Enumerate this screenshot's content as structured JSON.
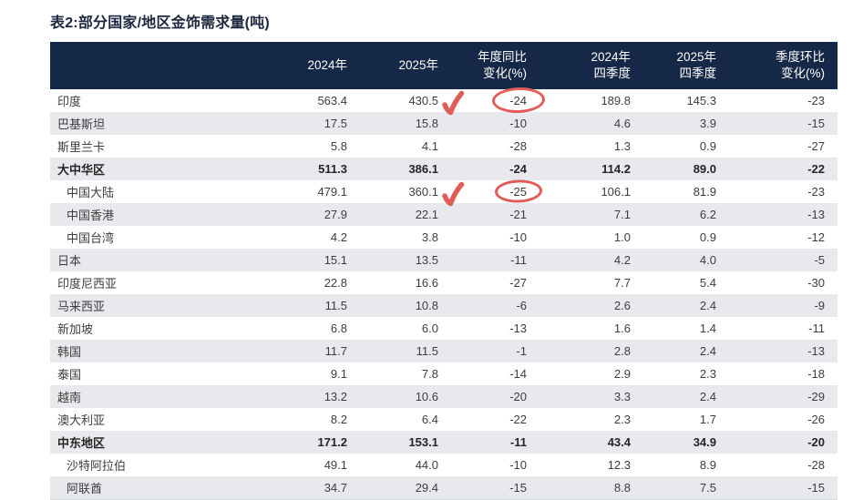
{
  "title": "表2:部分国家/地区金饰需求量(吨)",
  "colors": {
    "header_bg": "#162847",
    "stripe_bg": "#e7e9ec",
    "annotation_red": "#e25c57",
    "body_text": "#3d3d3d"
  },
  "annotations": {
    "checkmark_icon": "red-brush-checkmark",
    "circle_icon": "red-hand-drawn-ellipse"
  },
  "table": {
    "headers": [
      "",
      "2024年",
      "2025年",
      "年度同比\n变化(%)",
      "2024年\n四季度",
      "2025年\n四季度",
      "季度环比\n变化(%)"
    ],
    "rows": [
      {
        "label": "印度",
        "bold": false,
        "indent": false,
        "values": [
          "563.4",
          "430.5",
          "-24",
          "189.8",
          "145.3",
          "-23"
        ],
        "check_col": 1,
        "circle_col": 2,
        "circle_size": "big"
      },
      {
        "label": "巴基斯坦",
        "bold": false,
        "indent": false,
        "values": [
          "17.5",
          "15.8",
          "-10",
          "4.6",
          "3.9",
          "-15"
        ]
      },
      {
        "label": "斯里兰卡",
        "bold": false,
        "indent": false,
        "values": [
          "5.8",
          "4.1",
          "-28",
          "1.3",
          "0.9",
          "-27"
        ]
      },
      {
        "label": "大中华区",
        "bold": true,
        "indent": false,
        "values": [
          "511.3",
          "386.1",
          "-24",
          "114.2",
          "89.0",
          "-22"
        ]
      },
      {
        "label": "中国大陆",
        "bold": false,
        "indent": true,
        "values": [
          "479.1",
          "360.1",
          "-25",
          "106.1",
          "81.9",
          "-23"
        ],
        "check_col": 1,
        "circle_col": 2,
        "circle_size": "small"
      },
      {
        "label": "中国香港",
        "bold": false,
        "indent": true,
        "values": [
          "27.9",
          "22.1",
          "-21",
          "7.1",
          "6.2",
          "-13"
        ]
      },
      {
        "label": "中国台湾",
        "bold": false,
        "indent": true,
        "values": [
          "4.2",
          "3.8",
          "-10",
          "1.0",
          "0.9",
          "-12"
        ]
      },
      {
        "label": "日本",
        "bold": false,
        "indent": false,
        "values": [
          "15.1",
          "13.5",
          "-11",
          "4.2",
          "4.0",
          "-5"
        ]
      },
      {
        "label": "印度尼西亚",
        "bold": false,
        "indent": false,
        "values": [
          "22.8",
          "16.6",
          "-27",
          "7.7",
          "5.4",
          "-30"
        ]
      },
      {
        "label": "马来西亚",
        "bold": false,
        "indent": false,
        "values": [
          "11.5",
          "10.8",
          "-6",
          "2.6",
          "2.4",
          "-9"
        ]
      },
      {
        "label": "新加坡",
        "bold": false,
        "indent": false,
        "values": [
          "6.8",
          "6.0",
          "-13",
          "1.6",
          "1.4",
          "-11"
        ]
      },
      {
        "label": "韩国",
        "bold": false,
        "indent": false,
        "values": [
          "11.7",
          "11.5",
          "-1",
          "2.8",
          "2.4",
          "-13"
        ]
      },
      {
        "label": "泰国",
        "bold": false,
        "indent": false,
        "values": [
          "9.1",
          "7.8",
          "-14",
          "2.9",
          "2.3",
          "-18"
        ]
      },
      {
        "label": "越南",
        "bold": false,
        "indent": false,
        "values": [
          "13.2",
          "10.6",
          "-20",
          "3.3",
          "2.4",
          "-29"
        ]
      },
      {
        "label": "澳大利亚",
        "bold": false,
        "indent": false,
        "values": [
          "8.2",
          "6.4",
          "-22",
          "2.3",
          "1.7",
          "-26"
        ]
      },
      {
        "label": "中东地区",
        "bold": true,
        "indent": false,
        "values": [
          "171.2",
          "153.1",
          "-11",
          "43.4",
          "34.9",
          "-20"
        ]
      },
      {
        "label": "沙特阿拉伯",
        "bold": false,
        "indent": true,
        "values": [
          "49.1",
          "44.0",
          "-10",
          "12.3",
          "8.9",
          "-28"
        ]
      },
      {
        "label": "阿联酋",
        "bold": false,
        "indent": true,
        "values": [
          "34.7",
          "29.4",
          "-15",
          "8.8",
          "7.5",
          "-15"
        ]
      }
    ]
  }
}
